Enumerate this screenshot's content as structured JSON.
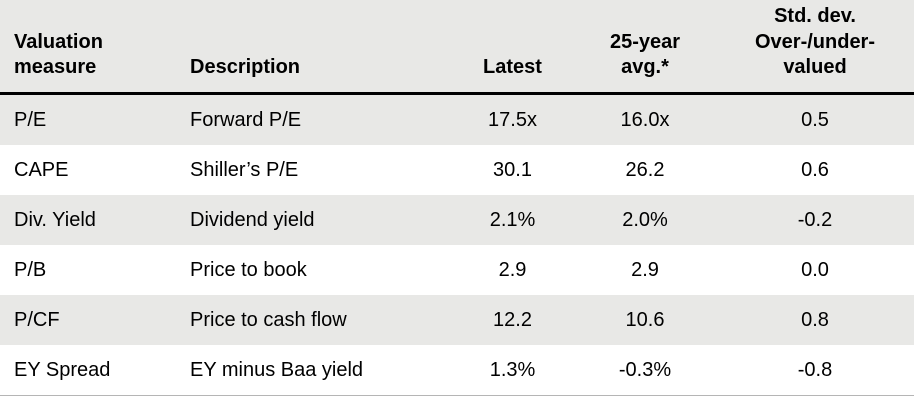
{
  "table": {
    "columns": [
      {
        "label": "Valuation\nmeasure"
      },
      {
        "label": "Description"
      },
      {
        "label": "Latest"
      },
      {
        "label": "25-year\navg.*"
      },
      {
        "label": "Std. dev.\nOver-/under-\nvalued"
      }
    ],
    "rows": [
      {
        "measure": "P/E",
        "description": "Forward P/E",
        "latest": "17.5x",
        "avg_25yr": "16.0x",
        "std_dev": "0.5"
      },
      {
        "measure": "CAPE",
        "description": "Shiller’s P/E",
        "latest": "30.1",
        "avg_25yr": "26.2",
        "std_dev": "0.6"
      },
      {
        "measure": "Div. Yield",
        "description": "Dividend yield",
        "latest": "2.1%",
        "avg_25yr": "2.0%",
        "std_dev": "-0.2"
      },
      {
        "measure": "P/B",
        "description": "Price to book",
        "latest": "2.9",
        "avg_25yr": "2.9",
        "std_dev": "0.0"
      },
      {
        "measure": "P/CF",
        "description": "Price to cash flow",
        "latest": "12.2",
        "avg_25yr": "10.6",
        "std_dev": "0.8"
      },
      {
        "measure": "EY Spread",
        "description": "EY minus Baa yield",
        "latest": "1.3%",
        "avg_25yr": "-0.3%",
        "std_dev": "-0.8"
      }
    ]
  },
  "colors": {
    "header_background": "#e8e8e6",
    "alternate_row_background": "#e8e8e6",
    "header_rule": "#000000",
    "bottom_rule": "#b5b5b5",
    "text": "#000000"
  },
  "chart_data": {
    "type": "table",
    "title": "",
    "columns": [
      "Valuation measure",
      "Description",
      "Latest",
      "25-year avg.*",
      "Std. dev. Over-/under-valued"
    ],
    "rows": [
      [
        "P/E",
        "Forward P/E",
        "17.5x",
        "16.0x",
        0.5
      ],
      [
        "CAPE",
        "Shiller’s P/E",
        "30.1",
        "26.2",
        0.6
      ],
      [
        "Div. Yield",
        "Dividend yield",
        "2.1%",
        "2.0%",
        -0.2
      ],
      [
        "P/B",
        "Price to book",
        "2.9",
        "2.9",
        0.0
      ],
      [
        "P/CF",
        "Price to cash flow",
        "12.2",
        "10.6",
        0.8
      ],
      [
        "EY Spread",
        "EY minus Baa yield",
        "1.3%",
        "-0.3%",
        -0.8
      ]
    ]
  }
}
